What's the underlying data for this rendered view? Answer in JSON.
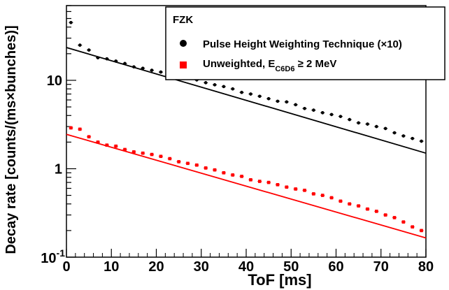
{
  "chart_data": {
    "type": "scatter",
    "xlabel": "ToF  [ms]",
    "ylabel": "Decay rate [counts/(ms×bunches)]",
    "xlim": [
      0,
      80
    ],
    "ylim": [
      0.1,
      70
    ],
    "log_y": true,
    "grid": false,
    "legend_position": "top-right",
    "legend_title": "FZK",
    "x_ticks": [
      "0",
      "10",
      "20",
      "30",
      "40",
      "50",
      "60",
      "70",
      "80"
    ],
    "y_ticks": [
      {
        "value": 0.1,
        "base": "10",
        "exp": "-1"
      },
      {
        "value": 1,
        "label": "1"
      },
      {
        "value": 10,
        "label": "10"
      }
    ],
    "series": [
      {
        "name": "Pulse Height Weighting Technique (×10)",
        "color": "#000000",
        "marker": "circle",
        "x": [
          1,
          3,
          5,
          7,
          9,
          11,
          13,
          15,
          17,
          19,
          21,
          23,
          25,
          27,
          29,
          31,
          33,
          35,
          37,
          39,
          41,
          43,
          45,
          47,
          49,
          51,
          53,
          55,
          57,
          59,
          61,
          63,
          65,
          67,
          69,
          71,
          73,
          75,
          77,
          79
        ],
        "y": [
          45,
          25,
          22,
          18,
          17.5,
          16.5,
          15.5,
          14.2,
          13.7,
          13.0,
          12.4,
          11.7,
          11.2,
          10.6,
          10.1,
          9.4,
          8.9,
          8.5,
          8.0,
          7.3,
          7.0,
          6.6,
          6.2,
          5.8,
          5.7,
          5.3,
          4.8,
          4.6,
          4.3,
          4.1,
          3.9,
          3.6,
          3.3,
          3.2,
          3.0,
          2.85,
          2.55,
          2.35,
          2.2,
          2.05
        ],
        "fit": {
          "x": [
            0,
            80
          ],
          "y": [
            23.5,
            1.5
          ]
        }
      },
      {
        "name_main": "Unweighted, E",
        "name_sub": "C6D6",
        "name_tail": " ≥ 2 MeV",
        "color": "#ff0000",
        "marker": "square",
        "x": [
          1,
          3,
          5,
          7,
          9,
          11,
          13,
          15,
          17,
          19,
          21,
          23,
          25,
          27,
          29,
          31,
          33,
          35,
          37,
          39,
          41,
          43,
          45,
          47,
          49,
          51,
          53,
          55,
          57,
          59,
          61,
          63,
          65,
          67,
          69,
          71,
          73,
          75,
          77,
          79
        ],
        "y": [
          2.9,
          2.8,
          2.3,
          2.0,
          1.85,
          1.8,
          1.65,
          1.55,
          1.5,
          1.45,
          1.38,
          1.3,
          1.2,
          1.15,
          1.1,
          1.02,
          0.97,
          0.9,
          0.85,
          0.82,
          0.75,
          0.72,
          0.7,
          0.66,
          0.62,
          0.59,
          0.57,
          0.52,
          0.5,
          0.47,
          0.43,
          0.4,
          0.38,
          0.35,
          0.33,
          0.3,
          0.28,
          0.25,
          0.22,
          0.2
        ],
        "fit": {
          "x": [
            0,
            80
          ],
          "y": [
            2.45,
            0.165
          ]
        }
      }
    ]
  }
}
